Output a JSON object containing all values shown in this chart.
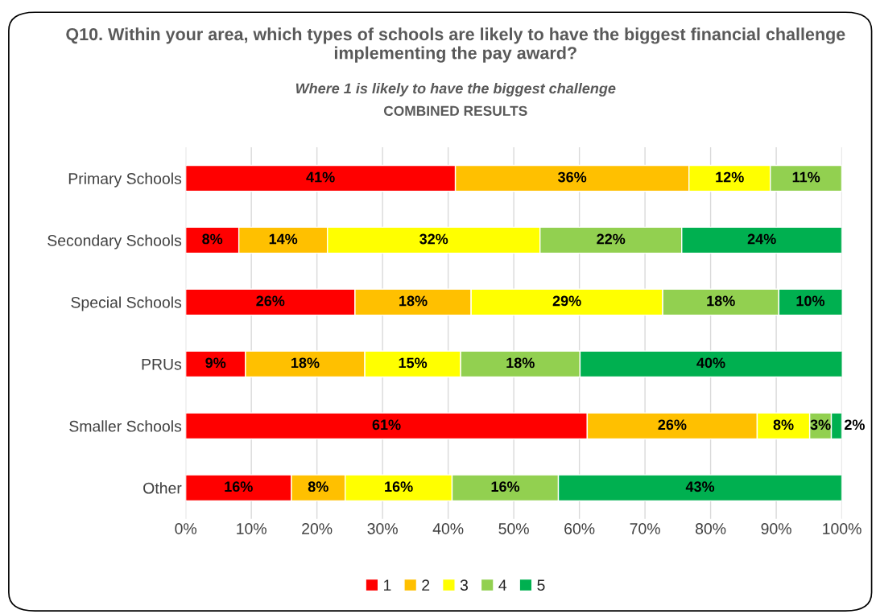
{
  "chart_data": {
    "type": "bar",
    "orientation": "horizontal",
    "stacked": true,
    "title": "Q10. Within your area, which types of schools are likely to have the biggest financial challenge implementing the pay award?",
    "subtitle": "Where 1 is likely to have the biggest challenge",
    "annotations": [
      "COMBINED RESULTS"
    ],
    "categories": [
      "Primary Schools",
      "Secondary Schools",
      "Special Schools",
      "PRUs",
      "Smaller Schools",
      "Other"
    ],
    "series": [
      {
        "name": "1",
        "color": "#ff0000",
        "values": [
          41.1,
          8.1,
          25.8,
          9.1,
          61.2,
          16.1
        ],
        "value_labels": [
          "41%",
          "8%",
          "26%",
          "9%",
          "61%",
          "16%"
        ]
      },
      {
        "name": "2",
        "color": "#ffc000",
        "values": [
          35.6,
          13.5,
          17.7,
          18.2,
          25.9,
          8.2
        ],
        "value_labels": [
          "36%",
          "14%",
          "18%",
          "18%",
          "26%",
          "8%"
        ]
      },
      {
        "name": "3",
        "color": "#ffff00",
        "values": [
          12.4,
          32.4,
          29.2,
          14.6,
          8.0,
          16.3
        ],
        "value_labels": [
          "12%",
          "32%",
          "29%",
          "15%",
          "8%",
          "16%"
        ]
      },
      {
        "name": "4",
        "color": "#92d050",
        "values": [
          10.9,
          21.6,
          17.7,
          18.2,
          3.3,
          16.2
        ],
        "value_labels": [
          "11%",
          "22%",
          "18%",
          "18%",
          "3%",
          "16%"
        ]
      },
      {
        "name": "5",
        "color": "#00b050",
        "values": [
          null,
          24.4,
          9.7,
          40.0,
          1.6,
          43.2
        ],
        "value_labels": [
          null,
          "24%",
          "10%",
          "40%",
          "2%",
          "43%"
        ]
      }
    ],
    "xlim": [
      0,
      100
    ],
    "xticks": [
      {
        "value": 0,
        "label": "0%"
      },
      {
        "value": 10,
        "label": "10%"
      },
      {
        "value": 20,
        "label": "20%"
      },
      {
        "value": 30,
        "label": "30%"
      },
      {
        "value": 40,
        "label": "40%"
      },
      {
        "value": 50,
        "label": "50%"
      },
      {
        "value": 60,
        "label": "60%"
      },
      {
        "value": 70,
        "label": "70%"
      },
      {
        "value": 80,
        "label": "80%"
      },
      {
        "value": 90,
        "label": "90%"
      },
      {
        "value": 100,
        "label": "100%"
      }
    ],
    "grid": "x",
    "legend": "bottom"
  }
}
